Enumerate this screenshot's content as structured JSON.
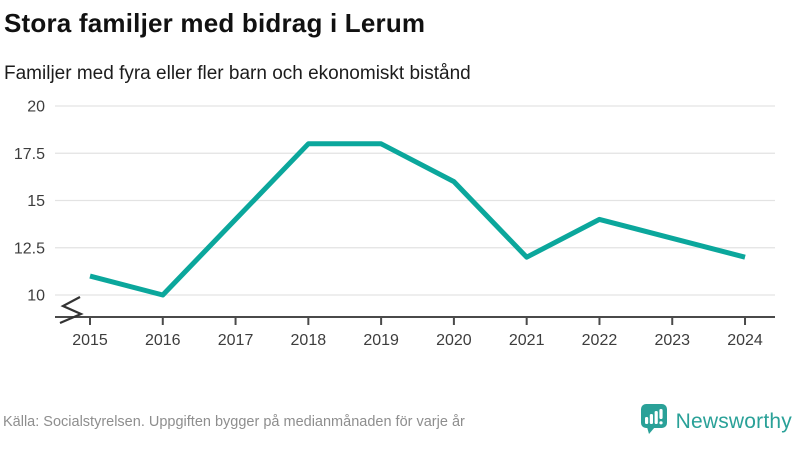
{
  "header": {
    "title": "Stora familjer med bidrag i Lerum",
    "subtitle": "Familjer med fyra eller fler barn och ekonomiskt bistånd"
  },
  "footer": {
    "source": "Källa: Socialstyrelsen. Uppgiften bygger på medianmånaden för varje år",
    "brand_name": "Newsworthy",
    "brand_icon": "newsworthy-speech-bubble-barchart-icon"
  },
  "colors": {
    "line": "#0ba79c",
    "grid": "#e3e3e3",
    "axis": "#4a4a4a",
    "tick_text": "#3d3d3d",
    "title_text": "#111111",
    "muted_text": "#8e8e8e",
    "brand": "#2aa198"
  },
  "chart_data": {
    "type": "line",
    "title": "Stora familjer med bidrag i Lerum",
    "subtitle": "Familjer med fyra eller fler barn och ekonomiskt bistånd",
    "x": [
      2015,
      2016,
      2017,
      2018,
      2019,
      2020,
      2021,
      2022,
      2023,
      2024
    ],
    "series": [
      {
        "name": "Familjer med fyra eller fler barn och ekonomiskt bistånd",
        "values": [
          11,
          10,
          14,
          18,
          18,
          16,
          12,
          14,
          13,
          12
        ]
      }
    ],
    "xlabel": "",
    "ylabel": "",
    "ylim": [
      10,
      20
    ],
    "yticks": [
      20,
      17.5,
      15,
      12.5,
      10
    ],
    "grid": true,
    "legend_position": "none",
    "axis_break_at_bottom": true
  }
}
